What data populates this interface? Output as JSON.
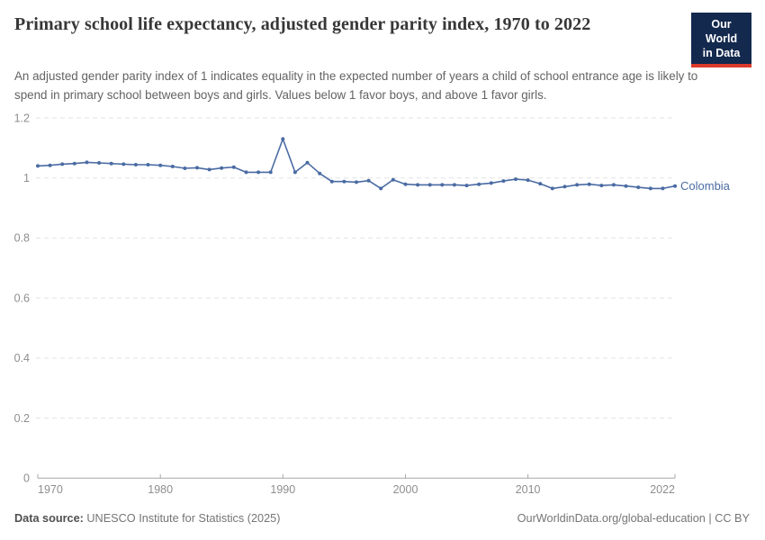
{
  "header": {
    "title": "Primary school life expectancy, adjusted gender parity index, 1970 to 2022",
    "subtitle": "An adjusted gender parity index of 1 indicates equality in the expected number of years a child of school entrance age is likely to spend in primary school between boys and girls. Values below 1 favor boys, and above 1 favor girls."
  },
  "logo": {
    "line1": "Our World",
    "line2": "in Data",
    "bg_color": "#13294e",
    "accent_color": "#dc3a2c"
  },
  "chart_data": {
    "type": "line",
    "title": "Primary school life expectancy, adjusted gender parity index, 1970 to 2022",
    "xlabel": "",
    "ylabel": "",
    "xlim": [
      1970,
      2022
    ],
    "ylim": [
      0,
      1.2
    ],
    "x_ticks": [
      1970,
      1980,
      1990,
      2000,
      2010,
      2022
    ],
    "y_ticks": [
      0,
      0.2,
      0.4,
      0.6,
      0.8,
      1,
      1.2
    ],
    "grid": "horizontal-dashed",
    "grid_color": "#e2e2e2",
    "axis_text_color": "#8e8e8e",
    "axis_line_color": "#a8a8a8",
    "series": [
      {
        "name": "Colombia",
        "color": "#4a6ba3",
        "x": [
          1970,
          1971,
          1972,
          1973,
          1974,
          1975,
          1976,
          1977,
          1978,
          1979,
          1980,
          1981,
          1982,
          1983,
          1984,
          1985,
          1986,
          1987,
          1988,
          1989,
          1990,
          1991,
          1992,
          1993,
          1994,
          1995,
          1996,
          1997,
          1998,
          1999,
          2000,
          2001,
          2002,
          2003,
          2004,
          2005,
          2006,
          2007,
          2008,
          2009,
          2010,
          2011,
          2012,
          2013,
          2014,
          2015,
          2016,
          2017,
          2018,
          2019,
          2020,
          2021,
          2022
        ],
        "values": [
          1.04,
          1.042,
          1.046,
          1.048,
          1.052,
          1.05,
          1.048,
          1.046,
          1.044,
          1.044,
          1.042,
          1.038,
          1.032,
          1.034,
          1.028,
          1.033,
          1.036,
          1.019,
          1.019,
          1.019,
          1.13,
          1.019,
          1.051,
          1.015,
          0.988,
          0.988,
          0.986,
          0.991,
          0.965,
          0.994,
          0.979,
          0.977,
          0.977,
          0.977,
          0.977,
          0.975,
          0.979,
          0.983,
          0.99,
          0.996,
          0.993,
          0.981,
          0.965,
          0.971,
          0.977,
          0.979,
          0.975,
          0.977,
          0.973,
          0.969,
          0.965,
          0.965,
          0.973
        ]
      }
    ]
  },
  "footer": {
    "source_label": "Data source:",
    "source_text": " UNESCO Institute for Statistics (2025)",
    "credit": "OurWorldinData.org/global-education | CC BY"
  }
}
